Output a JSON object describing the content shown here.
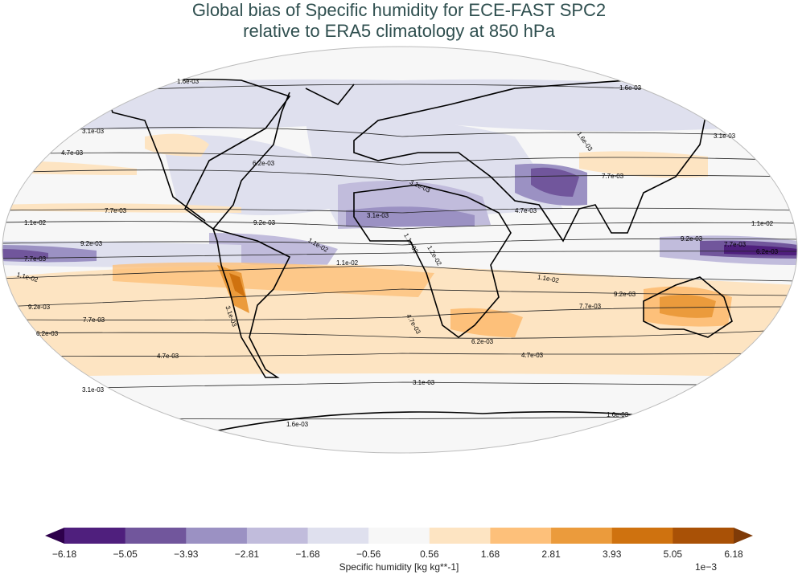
{
  "title": {
    "line1": "Global bias of Specific humidity for ECE-FAST SPC2",
    "line2": "relative to ERA5 climatology at 850 hPa"
  },
  "colorbar": {
    "label": "Specific humidity [kg kg**-1]",
    "scale": "1e−3",
    "ticks": [
      "−6.18",
      "−5.05",
      "−3.93",
      "−2.81",
      "−1.68",
      "−0.56",
      "0.56",
      "1.68",
      "2.81",
      "3.93",
      "5.05",
      "6.18"
    ],
    "colors": [
      "#2d004b",
      "#4f1f7d",
      "#71569c",
      "#9b91c3",
      "#c1bcdc",
      "#dfe0ee",
      "#f7f7f7",
      "#fde4c2",
      "#fdc07a",
      "#eb9b3c",
      "#cf720f",
      "#a95106",
      "#7f3b08"
    ]
  },
  "contour_labels": [
    "1.6e-03",
    "1.6e-03",
    "3.1e-03",
    "3.1e-03",
    "4.7e-03",
    "6.2e-03",
    "1.6e-03",
    "7.7e-03",
    "3.1e-03",
    "7.7e-03",
    "1.1e-02",
    "9.2e-03",
    "3.1e-03",
    "4.7e-03",
    "1.1e-02",
    "9.2e-03",
    "7.7e-03",
    "6.2e-03",
    "9.2e-03",
    "7.7e-03",
    "1.1e-02",
    "1.1e-02",
    "1.2e-02",
    "1.1e-02",
    "1.1e-02",
    "1.1e-02",
    "9.2e-03",
    "7.7e-03",
    "3.1e-03",
    "4.7e-03",
    "6.2e-03",
    "9.2e-03",
    "7.7e-03",
    "6.2e-03",
    "4.7e-03",
    "4.7e-03",
    "3.1e-03",
    "3.1e-03",
    "1.6e-03",
    "1.6e-03"
  ]
}
